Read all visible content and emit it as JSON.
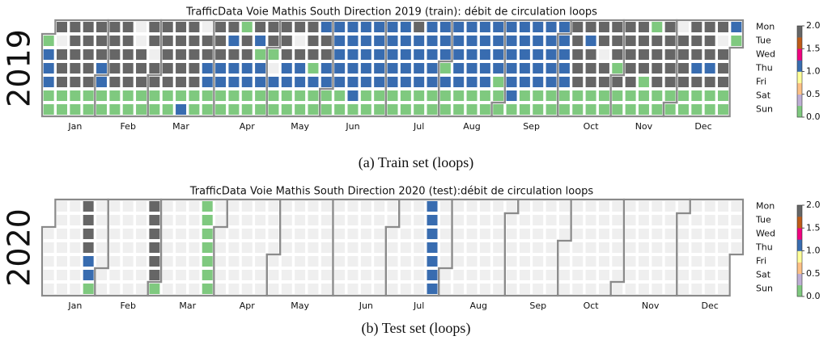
{
  "chart_data": [
    {
      "type": "calendar-heatmap",
      "title": "TrafficData Voie Mathis South Direction 2019 (train): débit de circulation loops",
      "year_label": "2019",
      "caption": "(a) Train set (loops)",
      "days": [
        "Mon",
        "Tue",
        "Wed",
        "Thu",
        "Fri",
        "Sat",
        "Sun"
      ],
      "months": [
        "Jan",
        "Feb",
        "Mar",
        "Apr",
        "May",
        "Jun",
        "Jul",
        "Aug",
        "Sep",
        "Oct",
        "Nov",
        "Dec"
      ],
      "clim": [
        0,
        2
      ],
      "cticks": [
        {
          "value": 0,
          "label": "0.0"
        },
        {
          "value": 0.5,
          "label": "0.5"
        },
        {
          "value": 1,
          "label": "1.0"
        },
        {
          "value": 1.5,
          "label": "1.5"
        },
        {
          "value": 2,
          "label": "2.0"
        }
      ],
      "colors": [
        "#7fc97f",
        "#beaed4",
        "#fdc086",
        "#ffff99",
        "#386cb0",
        "#f0027f",
        "#bf5b17",
        "#666666"
      ],
      "values": [
        0,
        1,
        1,
        1,
        0,
        0,
        2,
        null,
        2,
        2,
        2,
        0,
        0,
        2,
        2,
        2,
        2,
        2,
        0,
        0,
        2,
        2,
        2,
        2,
        2,
        0,
        0,
        2,
        2,
        2,
        1,
        1,
        0,
        0,
        2,
        2,
        2,
        2,
        2,
        0,
        0,
        2,
        2,
        2,
        2,
        2,
        0,
        0,
        null,
        null,
        2,
        2,
        2,
        0,
        0,
        2,
        2,
        null,
        2,
        2,
        0,
        0,
        2,
        2,
        2,
        2,
        2,
        0,
        0,
        2,
        2,
        2,
        2,
        2,
        0,
        1,
        2,
        2,
        2,
        2,
        2,
        0,
        0,
        null,
        2,
        2,
        1,
        1,
        0,
        0,
        2,
        2,
        2,
        1,
        1,
        0,
        0,
        2,
        1,
        2,
        1,
        1,
        0,
        0,
        0,
        2,
        2,
        1,
        1,
        0,
        0,
        2,
        1,
        0,
        1,
        1,
        0,
        0,
        2,
        2,
        0,
        null,
        1,
        0,
        0,
        2,
        2,
        2,
        1,
        1,
        0,
        0,
        2,
        null,
        2,
        1,
        1,
        0,
        0,
        2,
        2,
        2,
        0,
        1,
        0,
        0,
        1,
        2,
        2,
        1,
        1,
        0,
        0,
        1,
        1,
        1,
        1,
        1,
        0,
        0,
        1,
        1,
        1,
        1,
        1,
        1,
        0,
        1,
        1,
        1,
        1,
        1,
        0,
        0,
        1,
        1,
        1,
        1,
        1,
        0,
        0,
        1,
        1,
        1,
        1,
        1,
        0,
        0,
        1,
        1,
        1,
        1,
        1,
        0,
        0,
        2,
        1,
        1,
        1,
        1,
        0,
        0,
        1,
        1,
        1,
        1,
        1,
        0,
        0,
        1,
        1,
        1,
        0,
        1,
        0,
        0,
        1,
        1,
        1,
        1,
        1,
        0,
        0,
        1,
        1,
        1,
        1,
        1,
        0,
        0,
        1,
        1,
        1,
        1,
        1,
        0,
        0,
        1,
        1,
        1,
        1,
        0,
        0,
        0,
        1,
        1,
        1,
        1,
        1,
        1,
        0,
        1,
        1,
        1,
        1,
        1,
        0,
        0,
        1,
        1,
        1,
        1,
        1,
        0,
        0,
        1,
        1,
        1,
        1,
        1,
        0,
        0,
        1,
        1,
        1,
        1,
        1,
        0,
        0,
        2,
        2,
        2,
        2,
        2,
        0,
        0,
        2,
        1,
        2,
        2,
        2,
        0,
        0,
        2,
        2,
        null,
        2,
        2,
        0,
        0,
        2,
        2,
        2,
        0,
        2,
        0,
        0,
        2,
        2,
        2,
        2,
        2,
        0,
        0,
        2,
        2,
        2,
        2,
        0,
        0,
        0,
        0,
        2,
        2,
        2,
        2,
        0,
        0,
        2,
        2,
        2,
        2,
        2,
        0,
        0,
        null,
        2,
        2,
        2,
        2,
        0,
        0,
        2,
        2,
        2,
        1,
        2,
        0,
        0,
        2,
        2,
        2,
        1,
        2,
        0,
        0,
        2,
        null,
        2,
        2,
        2,
        0,
        0,
        1,
        0
      ]
    },
    {
      "type": "calendar-heatmap",
      "title": "TrafficData Voie Mathis South Direction 2020 (test):débit de circulation loops",
      "year_label": "2020",
      "caption": "(b) Test set (loops)",
      "days": [
        "Mon",
        "Tue",
        "Wed",
        "Thu",
        "Fri",
        "Sat",
        "Sun"
      ],
      "months": [
        "Jan",
        "Feb",
        "Mar",
        "Apr",
        "May",
        "Jun",
        "Jul",
        "Aug",
        "Sep",
        "Oct",
        "Nov",
        "Dec"
      ],
      "clim": [
        0,
        2
      ],
      "cticks": [
        {
          "value": 0,
          "label": "0.0"
        },
        {
          "value": 0.5,
          "label": "0.5"
        },
        {
          "value": 1,
          "label": "1.0"
        },
        {
          "value": 1.5,
          "label": "1.5"
        },
        {
          "value": 2,
          "label": "2.0"
        }
      ],
      "colors": [
        "#7fc97f",
        "#beaed4",
        "#fdc086",
        "#ffff99",
        "#386cb0",
        "#f0027f",
        "#bf5b17",
        "#666666"
      ],
      "values": [
        null,
        null,
        null,
        null,
        null,
        null,
        null,
        null,
        null,
        null,
        null,
        null,
        null,
        null,
        null,
        null,
        null,
        null,
        null,
        2,
        2,
        2,
        2,
        1,
        1,
        0,
        null,
        null,
        null,
        null,
        null,
        null,
        null,
        null,
        null,
        null,
        null,
        null,
        null,
        null,
        null,
        null,
        null,
        null,
        null,
        null,
        null,
        null,
        null,
        null,
        null,
        null,
        null,
        null,
        2,
        2,
        2,
        2,
        2,
        2,
        0,
        null,
        null,
        null,
        null,
        null,
        null,
        null,
        null,
        null,
        null,
        null,
        null,
        null,
        null,
        null,
        null,
        null,
        null,
        null,
        null,
        null,
        0,
        0,
        0,
        0,
        0,
        0,
        0,
        null,
        null,
        null,
        null,
        null,
        null,
        null,
        null,
        null,
        null,
        null,
        null,
        null,
        null,
        null,
        null,
        null,
        null,
        null,
        null,
        null,
        null,
        null,
        null,
        null,
        null,
        null,
        null,
        null,
        null,
        null,
        null,
        null,
        null,
        null,
        null,
        null,
        null,
        null,
        null,
        null,
        null,
        null,
        null,
        null,
        null,
        null,
        null,
        null,
        null,
        null,
        null,
        null,
        null,
        null,
        null,
        null,
        null,
        null,
        null,
        null,
        null,
        null,
        null,
        null,
        null,
        null,
        null,
        null,
        null,
        null,
        null,
        null,
        null,
        null,
        null,
        null,
        null,
        null,
        null,
        null,
        null,
        null,
        null,
        null,
        null,
        null,
        null,
        null,
        null,
        null,
        null,
        null,
        null,
        null,
        null,
        null,
        null,
        null,
        null,
        null,
        null,
        null,
        null,
        null,
        null,
        null,
        null,
        null,
        null,
        null,
        null,
        1,
        1,
        1,
        1,
        1,
        1,
        1,
        null,
        null,
        null,
        null,
        null,
        null,
        null,
        null,
        null,
        null,
        null,
        null,
        null,
        null,
        null,
        null,
        null,
        null,
        null,
        null,
        null,
        null,
        null,
        null,
        null,
        null,
        null,
        null,
        null,
        null,
        null,
        null,
        null,
        null,
        null,
        null,
        null,
        null,
        null,
        null,
        null,
        null,
        null,
        null,
        null,
        null,
        null,
        null,
        null,
        null,
        null,
        null,
        null,
        null,
        null,
        null,
        null,
        null,
        null,
        null,
        null,
        null,
        null,
        null,
        null,
        null,
        null,
        null,
        null,
        null,
        null,
        null,
        null,
        null,
        null,
        null,
        null,
        null,
        null,
        null,
        null,
        null,
        null,
        null,
        null,
        null,
        null,
        null,
        null,
        null,
        null,
        null,
        null,
        null,
        null,
        null,
        null,
        null,
        null,
        null,
        null,
        null,
        null,
        null,
        null,
        null,
        null,
        null,
        null,
        null,
        null,
        null,
        null,
        null,
        null,
        null,
        null,
        null,
        null,
        null,
        null,
        null,
        null,
        null,
        null,
        null,
        null,
        null,
        null,
        null,
        null,
        null,
        null,
        null,
        null,
        null,
        null,
        null,
        null,
        null,
        null,
        null,
        null,
        null,
        null,
        null,
        null,
        null,
        null,
        null,
        null,
        null,
        null,
        null,
        null,
        null,
        null,
        null
      ]
    }
  ]
}
